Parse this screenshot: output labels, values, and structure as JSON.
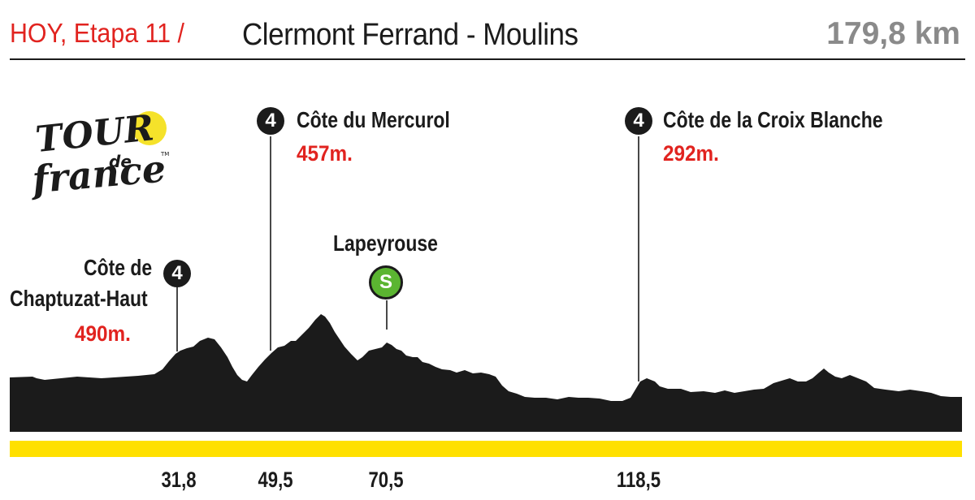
{
  "header": {
    "prefix": "HOY, Etapa 11 /",
    "route": "Clermont Ferrand - Moulins",
    "distance": "179,8 km"
  },
  "logo": {
    "text_line1": "TOUR",
    "text_line2": "de",
    "text_line3": "france",
    "trademark": "TM",
    "sun_color": "#f5e22a"
  },
  "climbs": [
    {
      "badge": "4",
      "name_line1": "Côte de",
      "name_line2": "Chaptuzat-Haut",
      "altitude": "490m.",
      "km": "31,8"
    },
    {
      "badge": "4",
      "name_line1": "Côte du Mercurol",
      "altitude": "457m.",
      "km": "49,5"
    },
    {
      "badge": "4",
      "name_line1": "Côte de la Croix Blanche",
      "altitude": "292m.",
      "km": "118,5"
    }
  ],
  "sprint": {
    "badge": "S",
    "name": "Lapeyrouse",
    "km": "70,5"
  },
  "colors": {
    "accent_red": "#e1231f",
    "profile_fill": "#1b1b1b",
    "baseline_yellow": "#ffe000",
    "sprint_green": "#5bb531",
    "distance_grey": "#8a8a8a"
  }
}
